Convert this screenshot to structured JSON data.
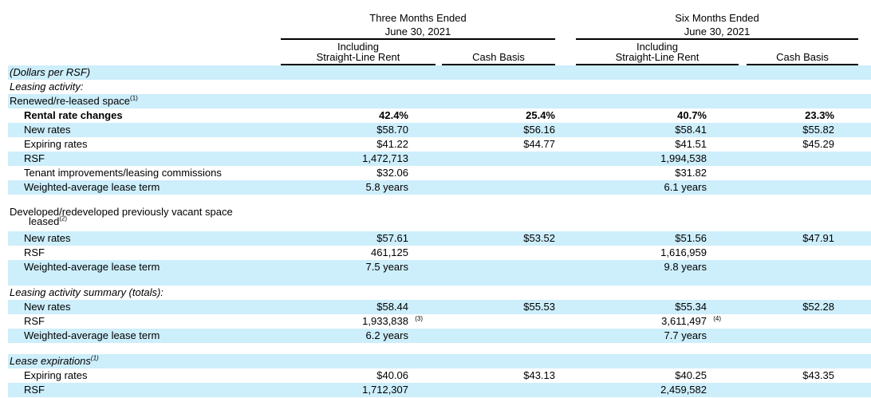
{
  "header": {
    "three_months": {
      "line1": "Three Months Ended",
      "line2": "June 30, 2021"
    },
    "six_months": {
      "line1": "Six Months Ended",
      "line2": "June 30, 2021"
    },
    "col_including_line1": "Including",
    "col_including_line2": "Straight-Line Rent",
    "col_cash": "Cash Basis"
  },
  "rows": [
    {
      "type": "text",
      "label": "(Dollars per RSF)",
      "style": "italic",
      "band": true
    },
    {
      "type": "text",
      "label": "Leasing activity:",
      "style": "italic",
      "band": false
    },
    {
      "type": "text",
      "label": "Renewed/re-leased space",
      "sup": "(1)",
      "band": true
    },
    {
      "type": "data",
      "label": "Rental rate changes",
      "bold": true,
      "band": false,
      "values": [
        "42.4%",
        "25.4%",
        "40.7%",
        "23.3%"
      ]
    },
    {
      "type": "data",
      "label": "New rates",
      "band": true,
      "values": [
        "$58.70",
        "$56.16",
        "$58.41",
        "$55.82"
      ]
    },
    {
      "type": "data",
      "label": "Expiring rates",
      "band": false,
      "values": [
        "$41.22",
        "$44.77",
        "$41.51",
        "$45.29"
      ]
    },
    {
      "type": "data",
      "label": "RSF",
      "band": true,
      "values": [
        "1,472,713",
        "",
        "1,994,538",
        ""
      ]
    },
    {
      "type": "data",
      "label": "Tenant improvements/leasing commissions",
      "band": false,
      "values": [
        "$32.06",
        "",
        "$31.82",
        ""
      ]
    },
    {
      "type": "data",
      "label": "Weighted-average lease term",
      "band": true,
      "values": [
        "5.8 years",
        "",
        "6.1 years",
        ""
      ]
    },
    {
      "type": "spacer",
      "band": false
    },
    {
      "type": "text2",
      "label": "Developed/redeveloped previously vacant space",
      "label2": "leased",
      "sup": "(2)",
      "band": false
    },
    {
      "type": "data",
      "label": "New rates",
      "band": true,
      "values": [
        "$57.61",
        "$53.52",
        "$51.56",
        "$47.91"
      ]
    },
    {
      "type": "data",
      "label": "RSF",
      "band": false,
      "values": [
        "461,125",
        "",
        "1,616,959",
        ""
      ]
    },
    {
      "type": "data",
      "label": "Weighted-average lease term",
      "band": true,
      "values": [
        "7.5 years",
        "",
        "9.8 years",
        ""
      ]
    },
    {
      "type": "spacer",
      "band": true
    },
    {
      "type": "text",
      "label": "Leasing activity summary (totals):",
      "style": "italic",
      "band": false
    },
    {
      "type": "data",
      "label": "New rates",
      "band": true,
      "values": [
        "$58.44",
        "$55.53",
        "$55.34",
        "$52.28"
      ]
    },
    {
      "type": "data",
      "label": "RSF",
      "band": false,
      "values": [
        "1,933,838",
        "",
        "3,611,497",
        ""
      ],
      "footnotes": [
        "(3)",
        "",
        "(4)",
        ""
      ]
    },
    {
      "type": "data",
      "label": "Weighted-average lease term",
      "band": true,
      "values": [
        "6.2 years",
        "",
        "7.7 years",
        ""
      ]
    },
    {
      "type": "spacer",
      "band": false
    },
    {
      "type": "text",
      "label": "Lease expirations",
      "sup": "(1)",
      "style": "italic",
      "band": true
    },
    {
      "type": "data",
      "label": "Expiring rates",
      "band": false,
      "values": [
        "$40.06",
        "$43.13",
        "$40.25",
        "$43.35"
      ]
    },
    {
      "type": "data",
      "label": "RSF",
      "band": true,
      "values": [
        "1,712,307",
        "",
        "2,459,582",
        ""
      ]
    }
  ]
}
